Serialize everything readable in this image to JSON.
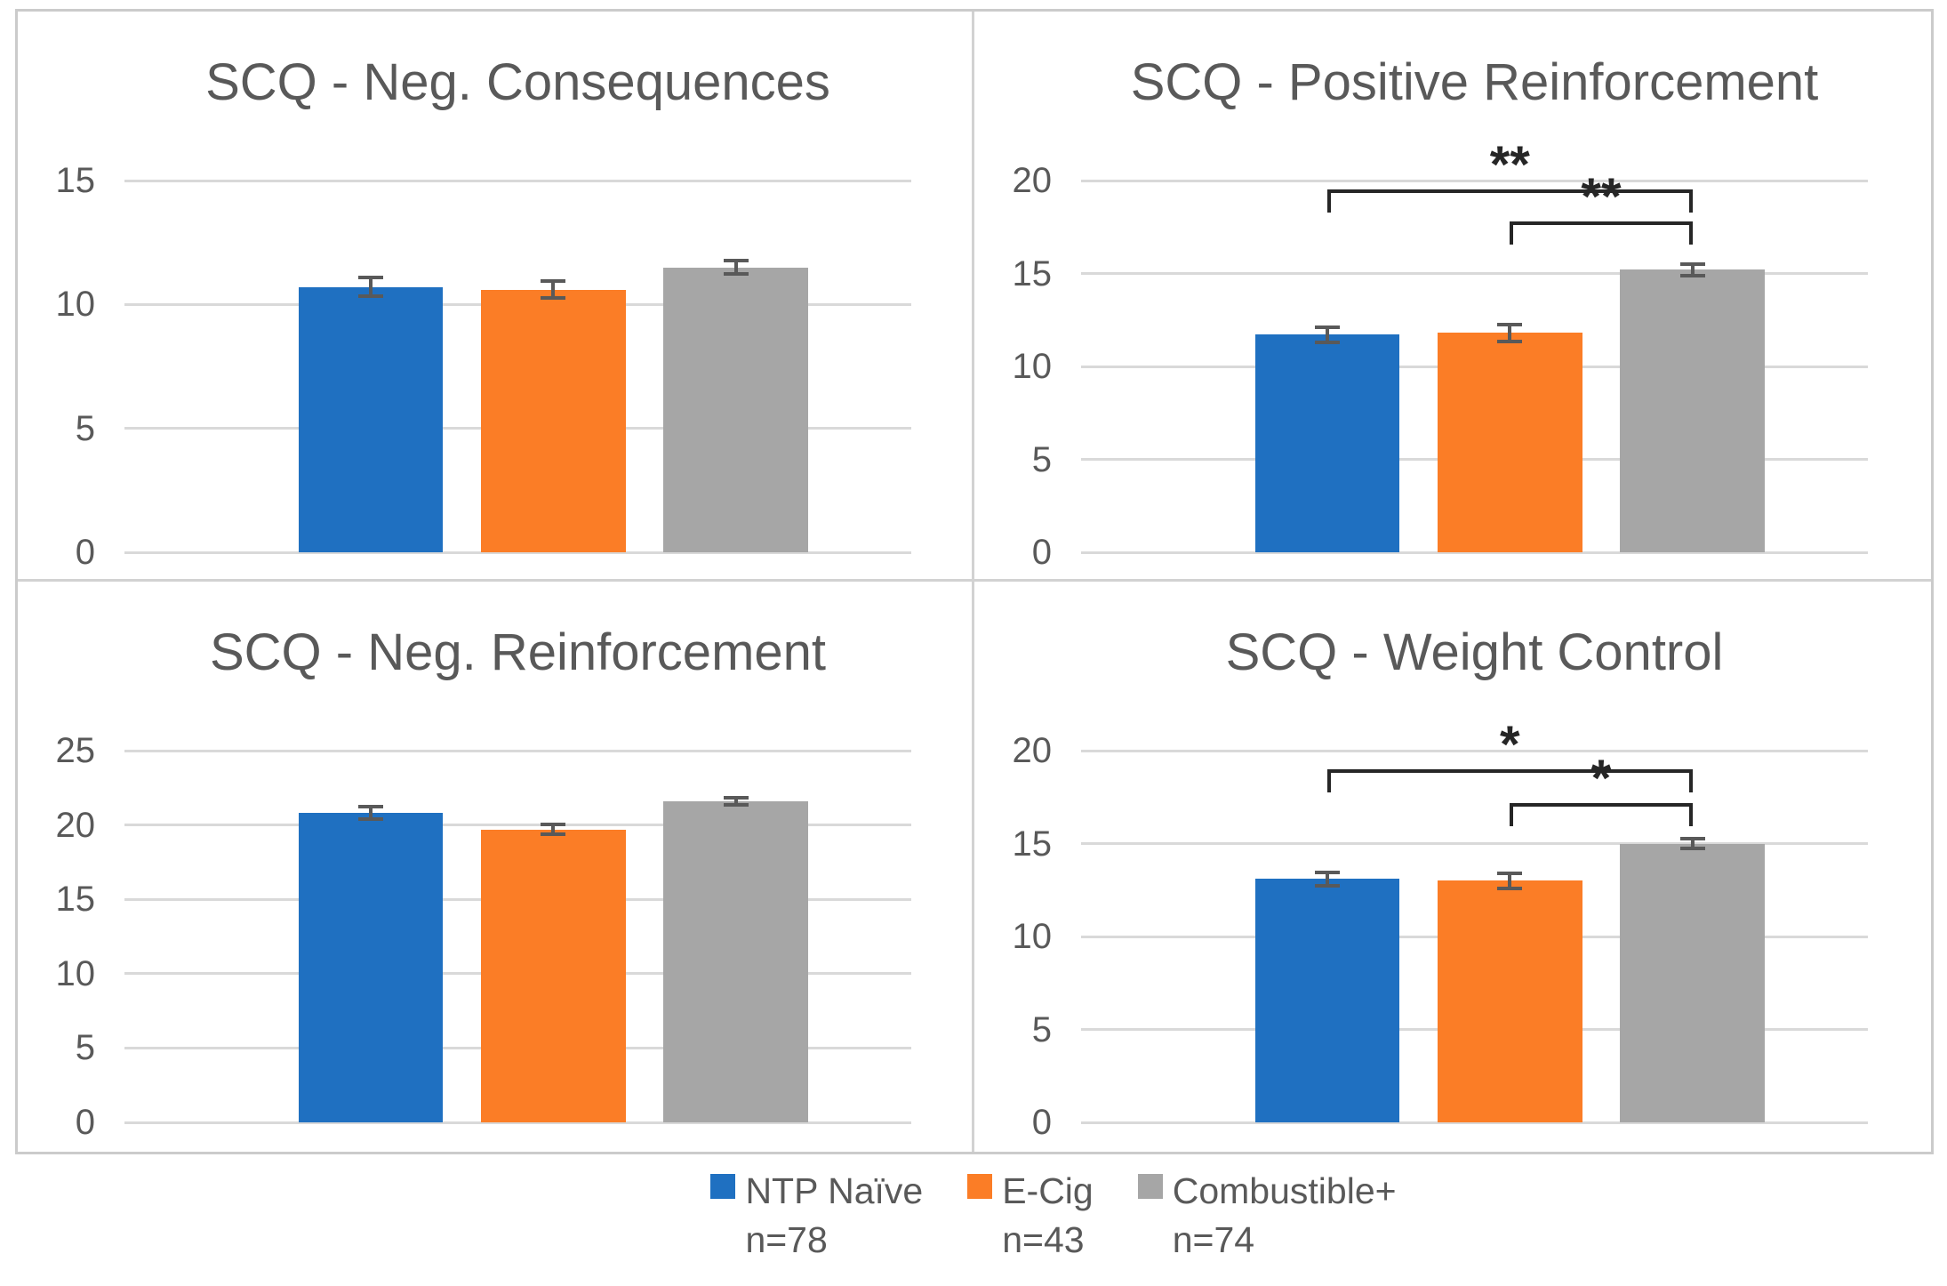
{
  "figure": {
    "description": "2x2 grid of bar charts of SCQ subscale scores by nicotine/tobacco product use group, with shared legend"
  },
  "colors": {
    "series": [
      "#1F70C1",
      "#FB7D26",
      "#A6A6A6"
    ],
    "gridline": "#D9D9D9",
    "panel_border": "#D2D2D2",
    "text": "#595959",
    "error_bar": "#595959",
    "bracket": "#262626"
  },
  "legend": {
    "items": [
      {
        "label": "NTP Naïve",
        "n": "n=78",
        "color": "#1F70C1"
      },
      {
        "label": "E-Cig",
        "n": "n=43",
        "color": "#FB7D26"
      },
      {
        "label": "Combustible+",
        "n": "n=74",
        "color": "#A6A6A6"
      }
    ]
  },
  "chart_data": [
    {
      "type": "bar",
      "title": "SCQ - Neg. Consequences",
      "categories": [
        "NTP Naïve",
        "E-Cig",
        "Combustible+"
      ],
      "values": [
        10.7,
        10.6,
        11.5
      ],
      "errors": [
        0.45,
        0.4,
        0.35
      ],
      "ylim": [
        0,
        15
      ],
      "yticks": [
        0,
        5,
        10,
        15
      ],
      "grid": true,
      "significance": []
    },
    {
      "type": "bar",
      "title": "SCQ - Positive Reinforcement",
      "categories": [
        "NTP Naïve",
        "E-Cig",
        "Combustible+"
      ],
      "values": [
        11.7,
        11.8,
        15.2
      ],
      "errors": [
        0.5,
        0.55,
        0.4
      ],
      "ylim": [
        0,
        20
      ],
      "yticks": [
        0,
        5,
        10,
        15,
        20
      ],
      "grid": true,
      "significance": [
        {
          "pair": [
            0,
            2
          ],
          "label": "**",
          "height": 19.5
        },
        {
          "pair": [
            1,
            2
          ],
          "label": "**",
          "height": 17.8
        }
      ]
    },
    {
      "type": "bar",
      "title": "SCQ - Neg. Reinforcement",
      "categories": [
        "NTP Naïve",
        "E-Cig",
        "Combustible+"
      ],
      "values": [
        20.8,
        19.7,
        21.6
      ],
      "errors": [
        0.55,
        0.45,
        0.35
      ],
      "ylim": [
        0,
        25
      ],
      "yticks": [
        0,
        5,
        10,
        15,
        20,
        25
      ],
      "grid": true,
      "significance": []
    },
    {
      "type": "bar",
      "title": "SCQ - Weight Control",
      "categories": [
        "NTP Naïve",
        "E-Cig",
        "Combustible+"
      ],
      "values": [
        13.1,
        13.0,
        15.0
      ],
      "errors": [
        0.45,
        0.5,
        0.35
      ],
      "ylim": [
        0,
        20
      ],
      "yticks": [
        0,
        5,
        10,
        15,
        20
      ],
      "grid": true,
      "significance": [
        {
          "pair": [
            0,
            2
          ],
          "label": "*",
          "height": 19.0
        },
        {
          "pair": [
            1,
            2
          ],
          "label": "*",
          "height": 17.2
        }
      ]
    }
  ]
}
